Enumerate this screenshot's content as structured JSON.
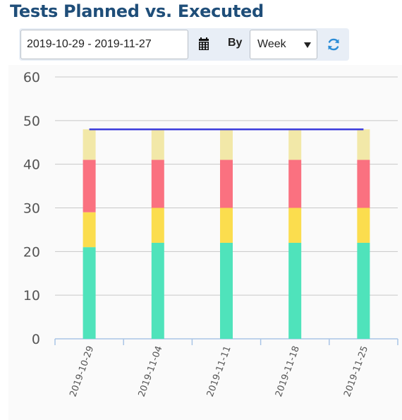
{
  "title": "Tests Planned vs. Executed",
  "toolbar": {
    "date_range": "2019-10-29 - 2019-11-27",
    "calendar_icon": "calendar-icon",
    "by_label": "By",
    "period": "Week",
    "refresh_icon": "refresh-icon"
  },
  "chart_data": {
    "type": "bar",
    "stacked": true,
    "categories": [
      "2019-10-29",
      "2019-11-04",
      "2019-11-11",
      "2019-11-18",
      "2019-11-25"
    ],
    "series": [
      {
        "color": "#4fe3bb",
        "values": [
          21,
          22,
          22,
          22,
          22
        ]
      },
      {
        "color": "#fbdd4e",
        "values": [
          8,
          8,
          8,
          8,
          8
        ]
      },
      {
        "color": "#fa7180",
        "values": [
          12,
          11,
          11,
          11,
          11
        ]
      },
      {
        "color": "#f2e8a8",
        "values": [
          7,
          7,
          7,
          7,
          7
        ]
      }
    ],
    "line": {
      "color": "#3b3bdc",
      "values": [
        48,
        48,
        48,
        48,
        48
      ]
    },
    "ylim": [
      0,
      60
    ],
    "yticks": [
      0,
      10,
      20,
      30,
      40,
      50,
      60
    ],
    "grid": true,
    "xlabel_rotation": -70
  }
}
